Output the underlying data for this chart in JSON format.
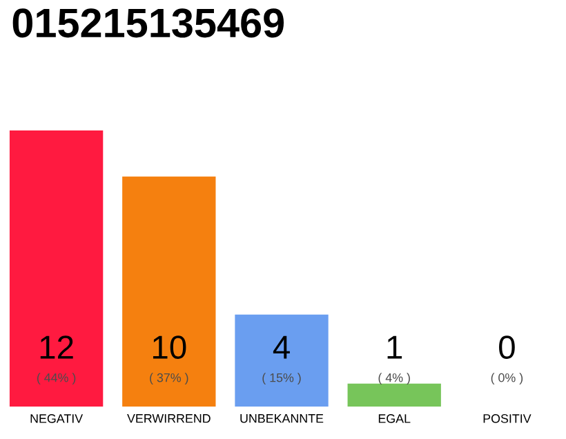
{
  "chart_data": {
    "type": "bar",
    "title": "015215135469",
    "categories": [
      "NEGATIV",
      "VERWIRREND",
      "UNBEKANNTE",
      "EGAL",
      "POSITIV"
    ],
    "values": [
      12,
      10,
      4,
      1,
      0
    ],
    "colors": [
      "#ff1a40",
      "#f5800f",
      "#6a9ef0",
      "#77c55a",
      null
    ],
    "data_labels": true,
    "annotations": [
      "( 44% )",
      "( 37% )",
      "( 15% )",
      "( 4% )",
      "( 0% )"
    ]
  }
}
